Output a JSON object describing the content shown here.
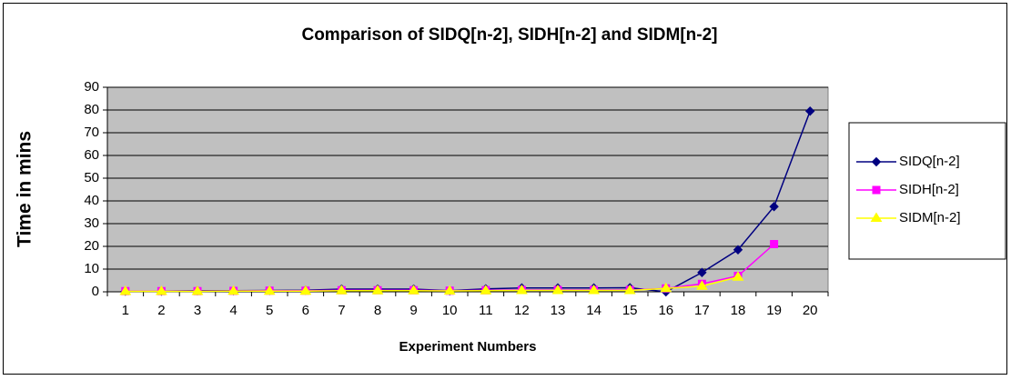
{
  "chart_data": {
    "type": "line",
    "title": "Comparison of SIDQ[n-2], SIDH[n-2] and SIDM[n-2]",
    "x_label": "Experiment Numbers",
    "y_label": "Time in mins",
    "categories": [
      "1",
      "2",
      "3",
      "4",
      "5",
      "6",
      "7",
      "8",
      "9",
      "10",
      "11",
      "12",
      "13",
      "14",
      "15",
      "16",
      "17",
      "18",
      "19",
      "20"
    ],
    "series": [
      {
        "name": "SIDQ[n-2]",
        "color": "#000080",
        "marker": "diamond",
        "values": [
          0.3,
          0.3,
          0.5,
          0.5,
          0.6,
          0.7,
          1.2,
          1.2,
          1.2,
          0.5,
          1.3,
          1.7,
          1.7,
          1.7,
          1.8,
          0,
          8.5,
          18.5,
          37.5,
          79.5
        ]
      },
      {
        "name": "SIDH[n-2]",
        "color": "#ff00ff",
        "marker": "square",
        "values": [
          0.3,
          0.3,
          0.3,
          0.4,
          0.5,
          0.5,
          0.7,
          0.7,
          0.7,
          0.5,
          0.7,
          0.8,
          0.8,
          0.8,
          0.8,
          1.5,
          3.5,
          7,
          21,
          null
        ]
      },
      {
        "name": "SIDM[n-2]",
        "color": "#ffff00",
        "marker": "triangle",
        "values": [
          0.2,
          0.2,
          0.2,
          0.3,
          0.3,
          0.3,
          0.5,
          0.5,
          0.5,
          0.4,
          0.5,
          0.6,
          0.6,
          0.6,
          0.6,
          1.5,
          2.5,
          6.5,
          null,
          null
        ]
      }
    ],
    "ylim": [
      0,
      90
    ],
    "yticks": [
      0,
      10,
      20,
      30,
      40,
      50,
      60,
      70,
      80,
      90
    ],
    "grid": true,
    "legend": "right",
    "plot_background": "#c0c0c0"
  }
}
